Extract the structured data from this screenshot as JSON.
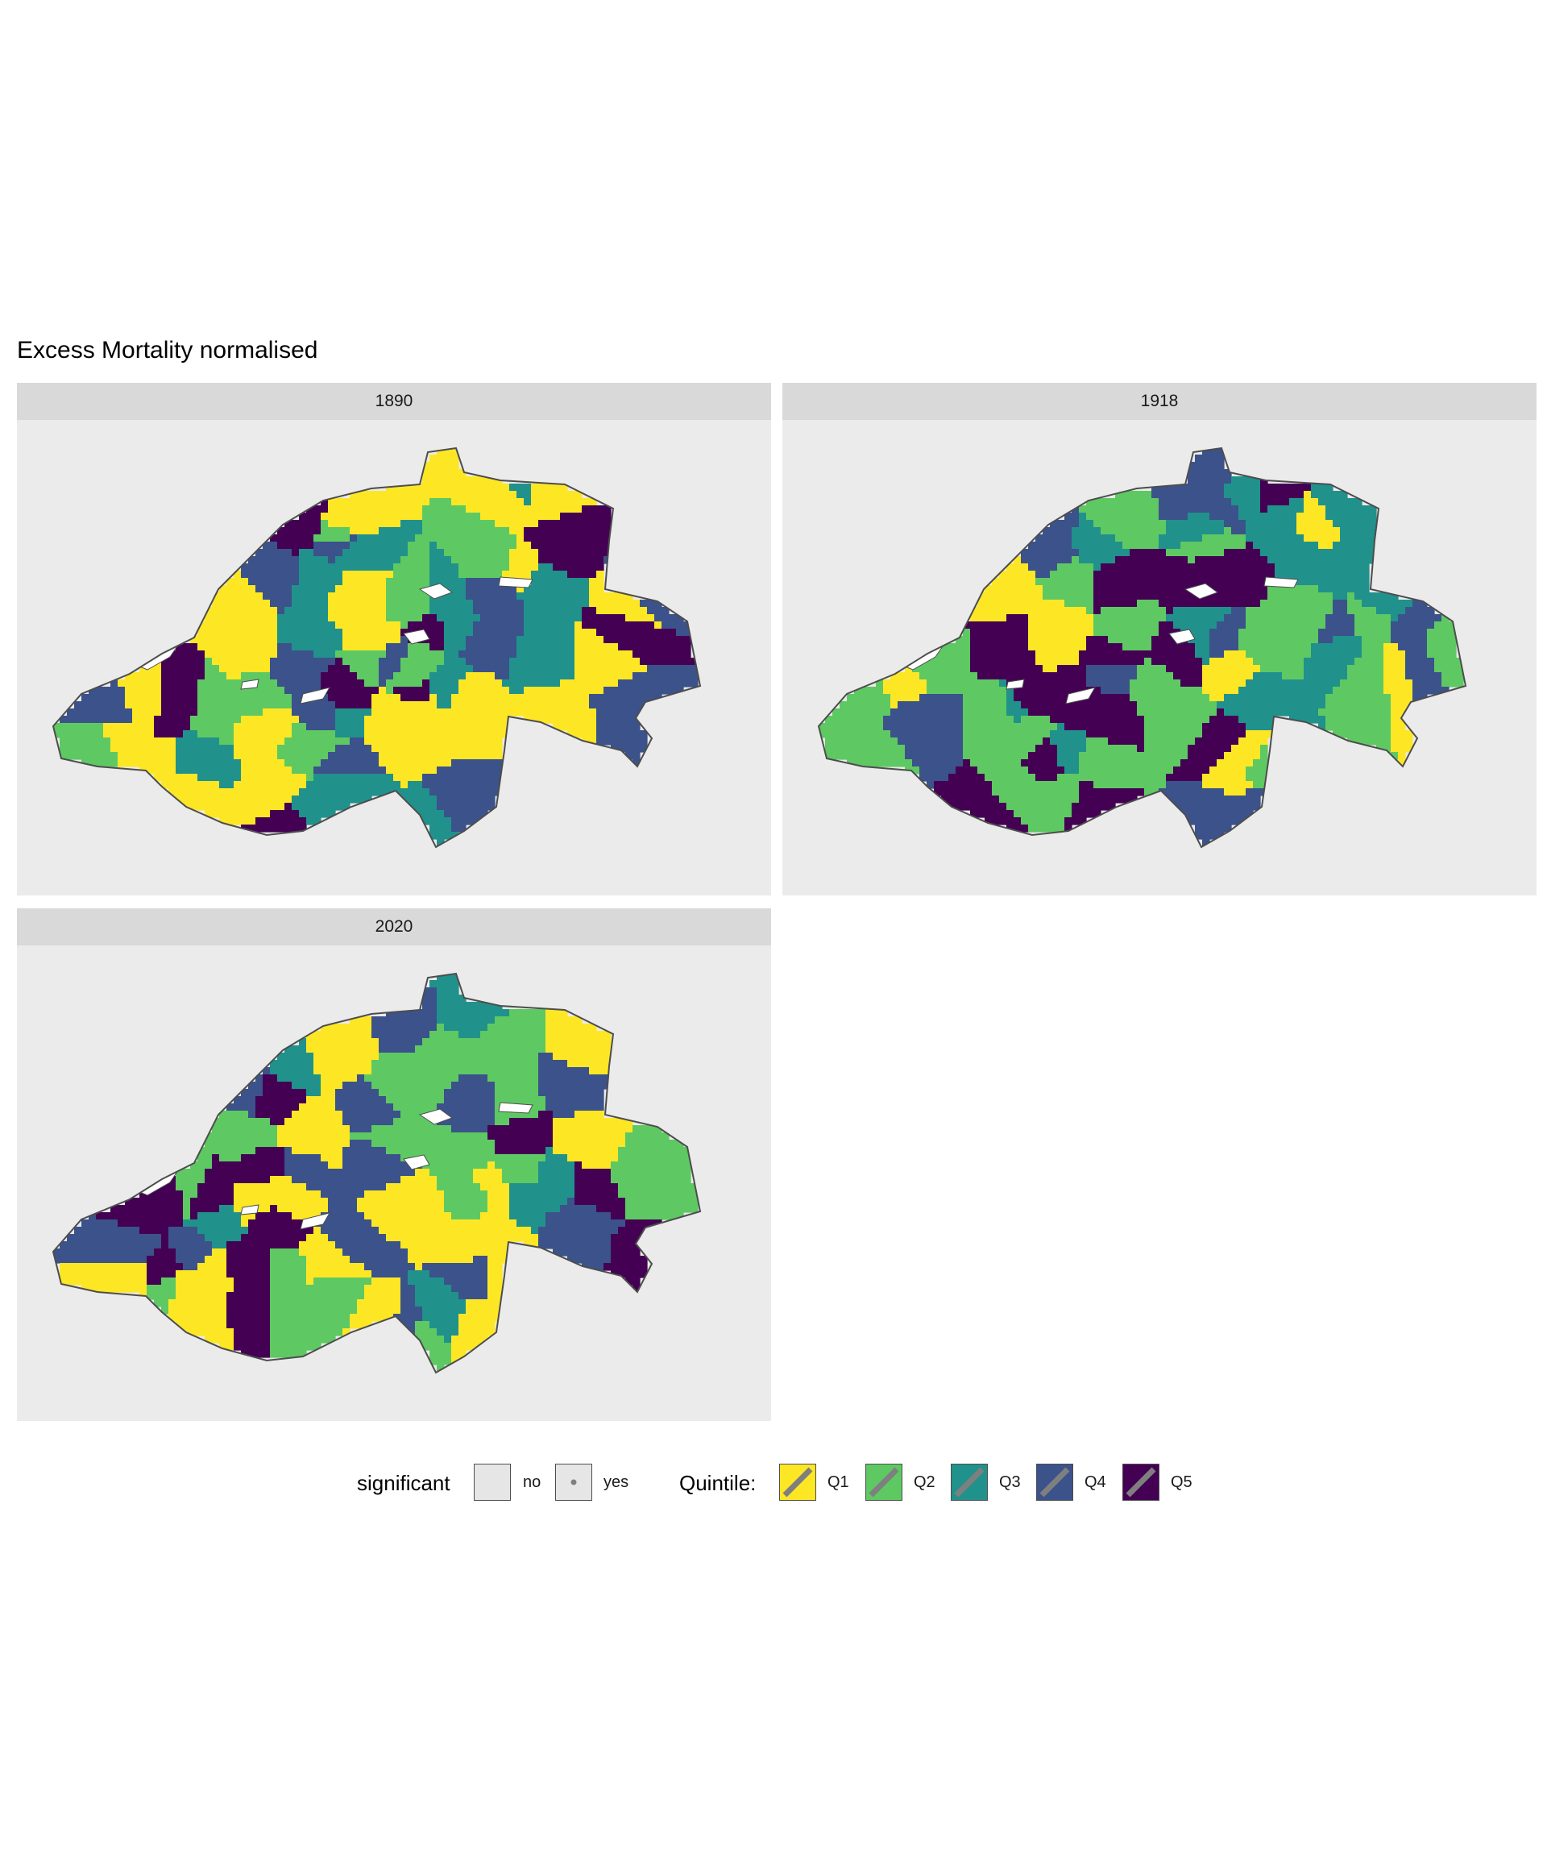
{
  "title": "Excess Mortality normalised",
  "panels": [
    {
      "year": "1890",
      "seed": 11,
      "yes_prob": 0.45
    },
    {
      "year": "1918",
      "seed": 29,
      "yes_prob": 0.65
    },
    {
      "year": "2020",
      "seed": 47,
      "yes_prob": 0.5
    }
  ],
  "legend": {
    "significant_title": "significant",
    "significant_items": [
      {
        "label": "no",
        "dot": false
      },
      {
        "label": "yes",
        "dot": true
      }
    ],
    "quintile_title": "Quintile:",
    "quintile_items": [
      {
        "label": "Q1",
        "color": "#fde725"
      },
      {
        "label": "Q2",
        "color": "#5ec962"
      },
      {
        "label": "Q3",
        "color": "#21918c"
      },
      {
        "label": "Q4",
        "color": "#3b528b"
      },
      {
        "label": "Q5",
        "color": "#440154"
      }
    ]
  },
  "colors": {
    "border": "#4d4d4d",
    "dot": "#8c8c8c",
    "lake": "#ffffff",
    "panel_bg": "#ebebeb",
    "strip_bg": "#d9d9d9"
  }
}
